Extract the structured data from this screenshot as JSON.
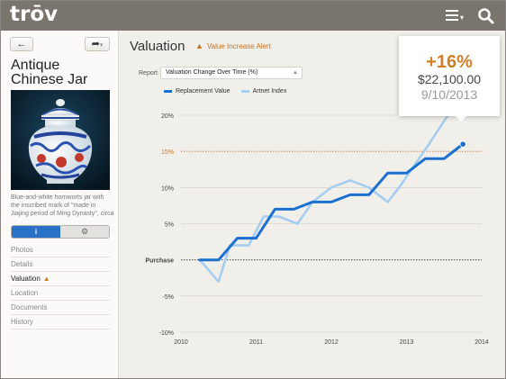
{
  "app": {
    "logo": "trōv"
  },
  "topbar": {
    "menu_icon": "hamburger-menu-icon",
    "search_icon": "search-icon"
  },
  "sidebar": {
    "back_icon": "arrow-left-icon",
    "share_icon": "share-arrow-icon",
    "item_title": "Antique Chinese Jar",
    "description": "Blue-and-white hornworts jar with the inscribed mark of \"made in Jiajing period of Ming Dynasty\", circa",
    "tabs": [
      {
        "icon": "info-icon",
        "glyph": "i"
      },
      {
        "icon": "gears-icon",
        "glyph": "⚙"
      }
    ],
    "nav": [
      {
        "label": "Photos",
        "active": false,
        "warn": false
      },
      {
        "label": "Details",
        "active": false,
        "warn": false
      },
      {
        "label": "Valuation",
        "active": true,
        "warn": true
      },
      {
        "label": "Location",
        "active": false,
        "warn": false
      },
      {
        "label": "Documents",
        "active": false,
        "warn": false
      },
      {
        "label": "History",
        "active": false,
        "warn": false
      }
    ]
  },
  "main": {
    "title": "Valuation",
    "alert": "Value Increase Alert",
    "report_label": "Report",
    "report_value": "Valuation Change Over Time (%)"
  },
  "tooltip": {
    "percent": "+16%",
    "value": "$22,100.00",
    "date": "9/10/2013"
  },
  "colors": {
    "replacement": "#1a6fd1",
    "artnet": "#a6cdef",
    "accent": "#c9731c",
    "tooltip_pct": "#d27f2a"
  },
  "chart_data": {
    "type": "line",
    "x_ticks": [
      2010,
      2011,
      2012,
      2013,
      2014
    ],
    "x_tick_labels": [
      "2010",
      "2011",
      "2012",
      "2013",
      "2014"
    ],
    "y_ticks": [
      20,
      15,
      10,
      5,
      0,
      -5,
      -10
    ],
    "y_tick_labels": [
      "20%",
      "15%",
      "10%",
      "5%",
      "Purchase",
      "-5%",
      "-10%"
    ],
    "xlim": [
      2010,
      2014
    ],
    "ylim": [
      -10,
      20
    ],
    "highlight_line": {
      "y": 15,
      "label": "15%"
    },
    "series": [
      {
        "name": "Replacement Value",
        "color": "#1a6fd1",
        "x": [
          2010.25,
          2010.5,
          2010.5,
          2010.75,
          2010.75,
          2011.0,
          2011.25,
          2011.25,
          2011.5,
          2011.75,
          2011.75,
          2012.0,
          2012.25,
          2012.25,
          2012.5,
          2012.75,
          2012.75,
          2013.0,
          2013.0,
          2013.25,
          2013.25,
          2013.5,
          2013.75
        ],
        "y": [
          0,
          0,
          0,
          3,
          3,
          3,
          7,
          7,
          7,
          8,
          8,
          8,
          9,
          9,
          9,
          12,
          12,
          12,
          12,
          14,
          14,
          14,
          16
        ]
      },
      {
        "name": "Artnet Index",
        "color": "#a6cdef",
        "x": [
          2010.25,
          2010.5,
          2010.65,
          2010.9,
          2011.1,
          2011.3,
          2011.55,
          2011.75,
          2012.0,
          2012.25,
          2012.5,
          2012.75,
          2012.9,
          2013.1,
          2013.3,
          2013.55
        ],
        "y": [
          0,
          -3,
          2,
          2,
          6,
          6,
          5,
          8,
          10,
          11,
          10,
          8,
          10,
          13,
          16,
          20
        ]
      }
    ],
    "marker": {
      "x": 2013.75,
      "y": 16
    },
    "legend": [
      "Replacement Value",
      "Artnet Index"
    ],
    "legend_position": "top-left",
    "grid": true
  }
}
